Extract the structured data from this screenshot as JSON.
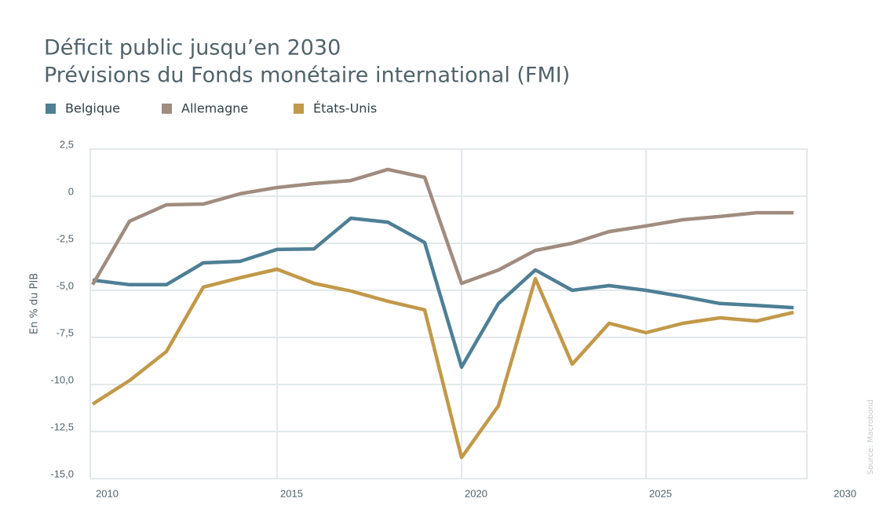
{
  "chart_data": {
    "type": "line",
    "title": "Déficit public jusqu’en 2030",
    "subtitle": "Prévisions du Fonds monétaire international (FMI)",
    "y_label": "En % du PIB",
    "source": "Source: Macrobond",
    "x": [
      2010,
      2011,
      2012,
      2013,
      2014,
      2015,
      2016,
      2017,
      2018,
      2019,
      2020,
      2021,
      2022,
      2023,
      2024,
      2025,
      2026,
      2027,
      2028,
      2029
    ],
    "series": [
      {
        "name": "Belgique",
        "color": "#4e7f95",
        "values": [
          -4.46,
          -4.7,
          -4.7,
          -3.54,
          -3.46,
          -2.83,
          -2.8,
          -1.17,
          -1.38,
          -2.46,
          -9.08,
          -5.7,
          -3.92,
          -5.0,
          -4.75,
          -5.0,
          -5.33,
          -5.7,
          -5.8,
          -5.92
        ]
      },
      {
        "name": "Allemagne",
        "color": "#a08c80",
        "values": [
          -4.7,
          -1.33,
          -0.46,
          -0.42,
          0.13,
          0.46,
          0.67,
          0.83,
          1.42,
          1.0,
          -4.63,
          -3.92,
          -2.88,
          -2.5,
          -1.88,
          -1.58,
          -1.25,
          -1.08,
          -0.88,
          -0.88
        ]
      },
      {
        "name": "États-Unis",
        "color": "#c2994a",
        "values": [
          -11.04,
          -9.79,
          -8.25,
          -4.83,
          -4.33,
          -3.88,
          -4.63,
          -5.04,
          -5.58,
          -6.04,
          -13.88,
          -11.13,
          -4.38,
          -8.92,
          -6.75,
          -7.25,
          -6.75,
          -6.46,
          -6.63,
          -6.17
        ]
      }
    ],
    "xlim": [
      2010,
      2030
    ],
    "xticks": [
      2010,
      2015,
      2020,
      2025,
      2030
    ],
    "ylim": [
      -15,
      2.5
    ],
    "yticks": [
      {
        "value": 2.5,
        "label": "2,5"
      },
      0,
      {
        "value": -2.5,
        "label": "-2,5"
      },
      {
        "value": -5,
        "label": "-5,0"
      },
      {
        "value": -7.5,
        "label": "-7,5"
      },
      {
        "value": -10,
        "label": "-10,0"
      },
      {
        "value": -12.5,
        "label": "-12,5"
      },
      {
        "value": -15,
        "label": "-15,0"
      }
    ],
    "grid": true
  }
}
